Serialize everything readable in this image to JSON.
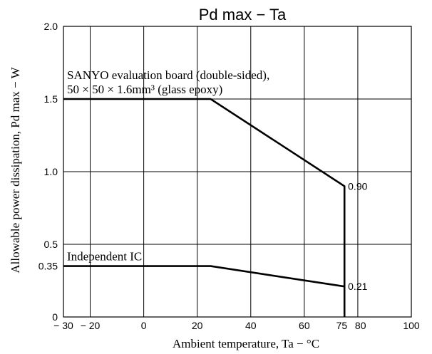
{
  "chart_data": {
    "type": "line",
    "title": "Pd max  −  Ta",
    "xlabel": "Ambient temperature,  Ta  −  °C",
    "ylabel": "Allowable power dissipation,  Pd max  −  W",
    "xlim": [
      -30,
      100
    ],
    "ylim": [
      0,
      2.0
    ],
    "x_ticks": [
      {
        "value": -30,
        "label": "− 30"
      },
      {
        "value": -20,
        "label": "− 20"
      },
      {
        "value": 0,
        "label": "0"
      },
      {
        "value": 20,
        "label": "20"
      },
      {
        "value": 40,
        "label": "40"
      },
      {
        "value": 60,
        "label": "60"
      },
      {
        "value": 75,
        "label": "75"
      },
      {
        "value": 80,
        "label": "80"
      },
      {
        "value": 100,
        "label": "100"
      }
    ],
    "y_ticks": [
      {
        "value": 0,
        "label": "0"
      },
      {
        "value": 0.35,
        "label": "0.35"
      },
      {
        "value": 0.5,
        "label": "0.5"
      },
      {
        "value": 1.0,
        "label": "1.0"
      },
      {
        "value": 1.5,
        "label": "1.5"
      },
      {
        "value": 2.0,
        "label": "2.0"
      }
    ],
    "grid_x": [
      -20,
      0,
      20,
      40,
      60,
      80,
      100
    ],
    "grid_y": [
      0.5,
      1.0,
      1.5,
      2.0
    ],
    "grid": true,
    "series": [
      {
        "label_lines": [
          "SANYO evaluation board (double-sided),",
          "50 × 50 × 1.6mm³ (glass epoxy)"
        ],
        "points": [
          [
            -30,
            1.5
          ],
          [
            25,
            1.5
          ],
          [
            75,
            0.9
          ],
          [
            75,
            0
          ]
        ],
        "end_label": "0.90"
      },
      {
        "label_lines": [
          "Independent IC"
        ],
        "points": [
          [
            -30,
            0.35
          ],
          [
            25,
            0.35
          ],
          [
            75,
            0.21
          ]
        ],
        "end_label": "0.21"
      }
    ]
  }
}
